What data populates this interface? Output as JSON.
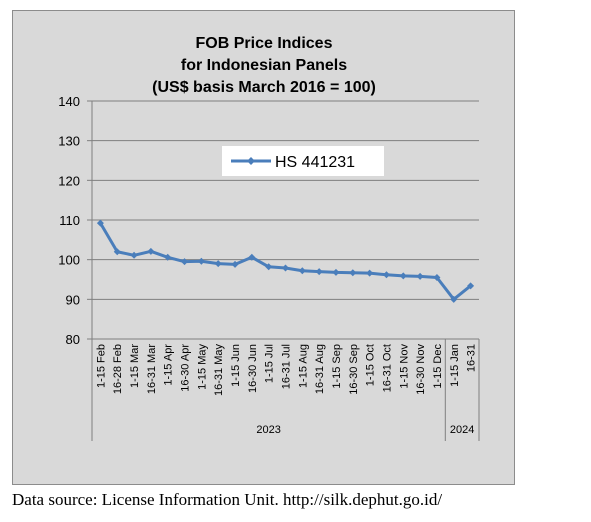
{
  "chart_data": {
    "type": "line",
    "title_lines": [
      "FOB Price Indices",
      "for Indonesian Panels",
      "(US$ basis March 2016 = 100)"
    ],
    "categories": [
      "1-15 Feb",
      "16-28 Feb",
      "1-15 Mar",
      "16-31 Mar",
      "1-15 Apr",
      "16-30 Apr",
      "1-15 May",
      "16-31 May",
      "1-15 Jun",
      "16-30 Jun",
      "1-15 Jul",
      "16-31 Jul",
      "1-15 Aug",
      "16-31 Aug",
      "1-15 Sep",
      "16-30 Sep",
      "1-15 Oct",
      "16-31 Oct",
      "1-15 Nov",
      "16-30 Nov",
      "1-15 Dec",
      "1-15 Jan",
      "16-31"
    ],
    "groups": [
      {
        "label": "2023",
        "start": 0,
        "end": 20
      },
      {
        "label": "2024",
        "start": 21,
        "end": 22
      }
    ],
    "series": [
      {
        "name": "HS 441231",
        "color": "#4a7ebb",
        "values": [
          109.2,
          102.0,
          101.1,
          102.1,
          100.6,
          99.5,
          99.6,
          99.0,
          98.8,
          100.6,
          98.2,
          97.9,
          97.2,
          97.0,
          96.8,
          96.7,
          96.6,
          96.2,
          95.9,
          95.8,
          95.5,
          90.0,
          93.4
        ]
      }
    ],
    "ylim": [
      80,
      140
    ],
    "yticks": [
      80,
      90,
      100,
      110,
      120,
      130,
      140
    ],
    "grid": true,
    "legend": "top-center"
  },
  "source_note": "Data source: License Information Unit. http://silk.dephut.go.id/"
}
